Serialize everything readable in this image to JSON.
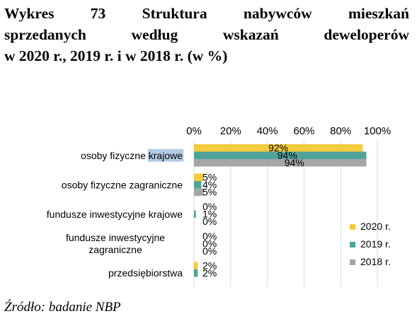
{
  "title": {
    "line1": "Wykres 73 Struktura nabywców mieszkań",
    "line2": "sprzedanych według wskazań deweloperów",
    "line3": "w 2020 r., 2019 r. i w 2018 r. (w %)"
  },
  "source": "Źródło: badanie NBP",
  "colors": {
    "s2020": "#f4cb3f",
    "s2019": "#4fa39b",
    "s2018": "#a6a6a6",
    "highlight": "#b4cde4"
  },
  "chart_data": {
    "type": "bar",
    "orientation": "horizontal",
    "categories": [
      [
        "osoby fizyczne krajowe"
      ],
      [
        "osoby fizyczne zagraniczne"
      ],
      [
        "fundusze inwestycyjne krajowe"
      ],
      [
        "fundusze inwestycyjne",
        "zagraniczne"
      ],
      [
        "przedsiębiorstwa"
      ]
    ],
    "x_ticks": [
      "0%",
      "20%",
      "40%",
      "60%",
      "80%",
      "100%"
    ],
    "xlim": [
      0,
      100
    ],
    "series": [
      {
        "name": "2020 r.",
        "values": [
          92,
          5,
          0,
          0,
          2
        ],
        "labels": [
          "92%",
          "5%",
          "0%",
          "0%",
          "2%"
        ]
      },
      {
        "name": "2019 r.",
        "values": [
          94,
          4,
          1,
          0,
          2
        ],
        "labels": [
          "94%",
          "4%",
          "1%",
          "0%",
          "2%"
        ]
      },
      {
        "name": "2018 r.",
        "values": [
          94,
          5,
          0,
          0,
          null
        ],
        "labels": [
          "94%",
          "5%",
          "0%",
          "0%",
          ""
        ]
      }
    ],
    "legend_position": "right",
    "grid": true
  }
}
